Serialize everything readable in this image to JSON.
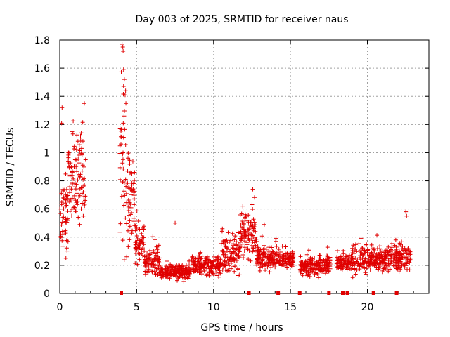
{
  "chart_data": {
    "type": "scatter",
    "title": "Day 003 of 2025, SRMTID for receiver naus",
    "xlabel": "GPS time / hours",
    "ylabel": "SRMTID / TECUs",
    "xlim": [
      0,
      24
    ],
    "ylim": [
      0,
      1.8
    ],
    "x_ticks": [
      0,
      5,
      10,
      15,
      20
    ],
    "y_ticks": [
      0,
      0.2,
      0.4,
      0.6,
      0.8,
      1,
      1.2,
      1.4,
      1.6,
      1.8
    ],
    "x_tick_labels": [
      "0",
      "5",
      "10",
      "15",
      "20"
    ],
    "y_tick_labels": [
      "0",
      "0.2",
      "0.4",
      "0.6",
      "0.8",
      "1",
      "1.2",
      "1.4",
      "1.6",
      "1.8"
    ],
    "grid": true,
    "marker": "+",
    "series_color": "#e00000",
    "segments": [
      {
        "x_start": 0.0,
        "x_end": 0.55,
        "base": 0.55,
        "spread": 0.4
      },
      {
        "x_start": 0.55,
        "x_end": 1.1,
        "base": 0.82,
        "spread": 0.35
      },
      {
        "x_start": 1.1,
        "x_end": 1.7,
        "base": 0.78,
        "spread": 0.45
      },
      {
        "x_start": 3.9,
        "x_end": 4.3,
        "base": 0.95,
        "spread": 0.75
      },
      {
        "x_start": 4.3,
        "x_end": 4.9,
        "base": 0.65,
        "spread": 0.45
      },
      {
        "x_start": 4.9,
        "x_end": 5.5,
        "base": 0.35,
        "spread": 0.2
      },
      {
        "x_start": 5.5,
        "x_end": 6.5,
        "base": 0.22,
        "spread": 0.12
      },
      {
        "x_start": 6.5,
        "x_end": 8.5,
        "base": 0.15,
        "spread": 0.08
      },
      {
        "x_start": 8.5,
        "x_end": 10.5,
        "base": 0.2,
        "spread": 0.1
      },
      {
        "x_start": 10.5,
        "x_end": 11.7,
        "base": 0.28,
        "spread": 0.18
      },
      {
        "x_start": 11.7,
        "x_end": 12.8,
        "base": 0.42,
        "spread": 0.25
      },
      {
        "x_start": 12.8,
        "x_end": 14.2,
        "base": 0.25,
        "spread": 0.12
      },
      {
        "x_start": 14.2,
        "x_end": 15.2,
        "base": 0.24,
        "spread": 0.08
      },
      {
        "x_start": 15.6,
        "x_end": 17.6,
        "base": 0.2,
        "spread": 0.1
      },
      {
        "x_start": 18.0,
        "x_end": 19.0,
        "base": 0.22,
        "spread": 0.1
      },
      {
        "x_start": 19.0,
        "x_end": 21.5,
        "base": 0.24,
        "spread": 0.14
      },
      {
        "x_start": 21.5,
        "x_end": 22.8,
        "base": 0.26,
        "spread": 0.15
      }
    ],
    "spikes": [
      {
        "x": 4.05,
        "y": 1.77
      },
      {
        "x": 4.1,
        "y": 1.75
      },
      {
        "x": 4.12,
        "y": 1.72
      },
      {
        "x": 4.15,
        "y": 1.59
      },
      {
        "x": 4.2,
        "y": 1.52
      },
      {
        "x": 4.28,
        "y": 1.44
      },
      {
        "x": 4.25,
        "y": 1.41
      },
      {
        "x": 4.3,
        "y": 1.35
      },
      {
        "x": 4.18,
        "y": 1.26
      },
      {
        "x": 0.15,
        "y": 1.32
      },
      {
        "x": 0.12,
        "y": 1.21
      },
      {
        "x": 1.6,
        "y": 1.35
      },
      {
        "x": 0.8,
        "y": 1.15
      },
      {
        "x": 12.55,
        "y": 0.74
      },
      {
        "x": 11.9,
        "y": 0.62
      },
      {
        "x": 22.5,
        "y": 0.58
      },
      {
        "x": 7.5,
        "y": 0.5
      },
      {
        "x": 13.3,
        "y": 0.49
      },
      {
        "x": 22.55,
        "y": 0.55
      },
      {
        "x": 0.4,
        "y": 0.25
      },
      {
        "x": 1.0,
        "y": 0.95
      }
    ],
    "gap_markers": [
      4.0,
      12.3,
      14.2,
      15.6,
      17.5,
      18.4,
      18.7,
      20.4,
      21.9
    ]
  }
}
